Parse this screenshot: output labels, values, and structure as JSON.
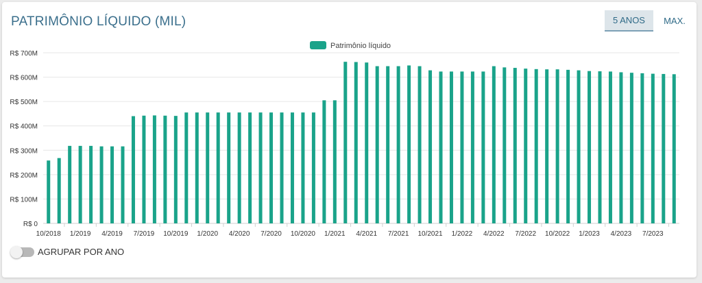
{
  "header": {
    "title": "PATRIMÔNIO LÍQUIDO (MIL)",
    "range_buttons": [
      {
        "label": "5 ANOS",
        "active": true
      },
      {
        "label": "MAX.",
        "active": false
      }
    ]
  },
  "toggle": {
    "label": "AGRUPAR POR ANO",
    "on": false
  },
  "colors": {
    "bar": "#1aa38a",
    "grid": "#e6e6e6",
    "axis_text": "#333333"
  },
  "chart_data": {
    "type": "bar",
    "title": "",
    "xlabel": "",
    "ylabel": "",
    "legend": {
      "position": "top-center"
    },
    "grid": true,
    "ylim": [
      0,
      700
    ],
    "yticks": [
      0,
      100,
      200,
      300,
      400,
      500,
      600,
      700
    ],
    "ytick_labels": [
      "R$ 0",
      "R$ 100M",
      "R$ 200M",
      "R$ 300M",
      "R$ 400M",
      "R$ 500M",
      "R$ 600M",
      "R$ 700M"
    ],
    "xtick_labels": [
      "10/2018",
      "1/2019",
      "4/2019",
      "7/2019",
      "10/2019",
      "1/2020",
      "4/2020",
      "7/2020",
      "10/2020",
      "1/2021",
      "4/2021",
      "7/2021",
      "10/2021",
      "1/2022",
      "4/2022",
      "7/2022",
      "10/2022",
      "1/2023",
      "4/2023",
      "7/2023"
    ],
    "x_label_every": 3,
    "categories": [
      "10/2018",
      "11/2018",
      "12/2018",
      "1/2019",
      "2/2019",
      "3/2019",
      "4/2019",
      "5/2019",
      "6/2019",
      "7/2019",
      "8/2019",
      "9/2019",
      "10/2019",
      "11/2019",
      "12/2019",
      "1/2020",
      "2/2020",
      "3/2020",
      "4/2020",
      "5/2020",
      "6/2020",
      "7/2020",
      "8/2020",
      "9/2020",
      "10/2020",
      "11/2020",
      "12/2020",
      "1/2021",
      "2/2021",
      "3/2021",
      "4/2021",
      "5/2021",
      "6/2021",
      "7/2021",
      "8/2021",
      "9/2021",
      "10/2021",
      "11/2021",
      "12/2021",
      "1/2022",
      "2/2022",
      "3/2022",
      "4/2022",
      "5/2022",
      "6/2022",
      "7/2022",
      "8/2022",
      "9/2022",
      "10/2022",
      "11/2022",
      "12/2022",
      "1/2023",
      "2/2023",
      "3/2023",
      "4/2023",
      "5/2023",
      "6/2023",
      "7/2023",
      "8/2023",
      "9/2023"
    ],
    "series": [
      {
        "name": "Patrimônio líquido",
        "values": [
          258,
          268,
          318,
          318,
          318,
          316,
          316,
          316,
          440,
          442,
          443,
          442,
          441,
          455,
          455,
          455,
          455,
          455,
          455,
          455,
          455,
          455,
          455,
          455,
          455,
          455,
          505,
          505,
          663,
          662,
          660,
          645,
          645,
          645,
          648,
          645,
          628,
          623,
          623,
          623,
          623,
          623,
          645,
          640,
          638,
          635,
          633,
          632,
          632,
          630,
          628,
          625,
          624,
          623,
          620,
          618,
          616,
          614,
          613,
          612
        ]
      }
    ]
  }
}
